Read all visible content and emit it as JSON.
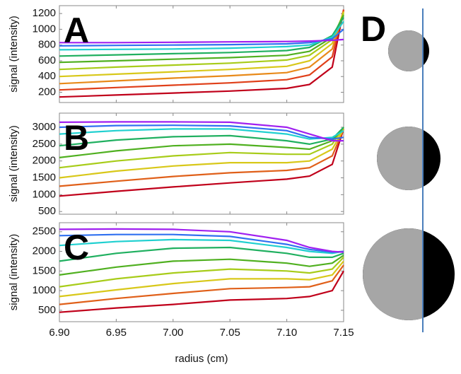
{
  "chart_data": [
    {
      "type": "line",
      "label": "A",
      "ylabel": "signal (intensity)",
      "x": [
        6.9,
        6.95,
        7.0,
        7.05,
        7.1,
        7.12,
        7.14,
        7.15
      ],
      "xlim": [
        6.9,
        7.15
      ],
      "xticks": [
        6.9,
        6.95,
        7.0,
        7.05,
        7.1,
        7.15
      ],
      "ylim": [
        70,
        1300
      ],
      "yticks": [
        200,
        400,
        600,
        800,
        1000,
        1200
      ],
      "series": [
        {
          "color": "#c0001a",
          "values": [
            140,
            165,
            190,
            215,
            250,
            300,
            520,
            1250
          ]
        },
        {
          "color": "#e0401a",
          "values": [
            230,
            260,
            290,
            320,
            360,
            420,
            650,
            1250
          ]
        },
        {
          "color": "#e88a1a",
          "values": [
            310,
            345,
            380,
            410,
            450,
            520,
            750,
            1230
          ]
        },
        {
          "color": "#d8c81a",
          "values": [
            400,
            430,
            460,
            490,
            530,
            600,
            820,
            1220
          ]
        },
        {
          "color": "#a8cc1a",
          "values": [
            490,
            520,
            545,
            570,
            610,
            670,
            870,
            1200
          ]
        },
        {
          "color": "#50b020",
          "values": [
            580,
            600,
            620,
            640,
            670,
            720,
            900,
            1180
          ]
        },
        {
          "color": "#20b060",
          "values": [
            660,
            675,
            690,
            705,
            730,
            770,
            920,
            1150
          ]
        },
        {
          "color": "#20d0d0",
          "values": [
            740,
            745,
            750,
            760,
            780,
            800,
            900,
            1100
          ]
        },
        {
          "color": "#3070f0",
          "values": [
            790,
            795,
            800,
            805,
            815,
            830,
            880,
            1000
          ]
        },
        {
          "color": "#a020f0",
          "values": [
            830,
            830,
            835,
            840,
            845,
            850,
            860,
            870
          ]
        }
      ]
    },
    {
      "type": "line",
      "label": "B",
      "ylabel": "signal (intensity)",
      "x": [
        6.9,
        6.95,
        7.0,
        7.05,
        7.1,
        7.12,
        7.14,
        7.15
      ],
      "xlim": [
        6.9,
        7.15
      ],
      "xticks": [
        6.9,
        6.95,
        7.0,
        7.05,
        7.1,
        7.15
      ],
      "ylim": [
        420,
        3420
      ],
      "yticks": [
        500,
        1000,
        1500,
        2000,
        2500,
        3000
      ],
      "series": [
        {
          "color": "#c0001a",
          "values": [
            960,
            1100,
            1230,
            1350,
            1460,
            1550,
            1900,
            2950
          ]
        },
        {
          "color": "#e0601a",
          "values": [
            1250,
            1400,
            1540,
            1650,
            1720,
            1800,
            2150,
            2950
          ]
        },
        {
          "color": "#d8c81a",
          "values": [
            1500,
            1700,
            1850,
            1950,
            1950,
            2000,
            2350,
            2950
          ]
        },
        {
          "color": "#a8cc1a",
          "values": [
            1800,
            2000,
            2150,
            2250,
            2200,
            2200,
            2500,
            3000
          ]
        },
        {
          "color": "#50b020",
          "values": [
            2100,
            2300,
            2450,
            2500,
            2400,
            2350,
            2600,
            3000
          ]
        },
        {
          "color": "#20b060",
          "values": [
            2450,
            2620,
            2720,
            2750,
            2600,
            2500,
            2650,
            3000
          ]
        },
        {
          "color": "#20d0d0",
          "values": [
            2800,
            2900,
            2950,
            2950,
            2800,
            2650,
            2700,
            2900
          ]
        },
        {
          "color": "#3070f0",
          "values": [
            3000,
            3050,
            3060,
            3040,
            2900,
            2700,
            2650,
            2700
          ]
        },
        {
          "color": "#a020f0",
          "values": [
            3150,
            3160,
            3160,
            3150,
            3000,
            2800,
            2600,
            2600
          ]
        }
      ]
    },
    {
      "type": "line",
      "label": "C",
      "ylabel": "signal (intensity)",
      "xlabel": "radius (cm)",
      "x": [
        6.9,
        6.95,
        7.0,
        7.05,
        7.1,
        7.12,
        7.14,
        7.15
      ],
      "xlim": [
        6.9,
        7.15
      ],
      "xticks": [
        {
          "value": 6.9,
          "label": "6.90"
        },
        6.95,
        {
          "value": 7.0,
          "label": "7.00"
        },
        7.05,
        {
          "value": 7.1,
          "label": "7.10"
        },
        7.15
      ],
      "ylim": [
        210,
        2730
      ],
      "yticks": [
        500,
        1000,
        1500,
        2000,
        2500
      ],
      "series": [
        {
          "color": "#c0001a",
          "values": [
            450,
            560,
            650,
            760,
            800,
            850,
            1000,
            1500
          ]
        },
        {
          "color": "#e0601a",
          "values": [
            650,
            800,
            930,
            1050,
            1080,
            1100,
            1250,
            1650
          ]
        },
        {
          "color": "#d8c81a",
          "values": [
            850,
            1020,
            1180,
            1300,
            1300,
            1280,
            1400,
            1750
          ]
        },
        {
          "color": "#a8cc1a",
          "values": [
            1100,
            1300,
            1450,
            1550,
            1500,
            1450,
            1550,
            1850
          ]
        },
        {
          "color": "#50b020",
          "values": [
            1400,
            1600,
            1750,
            1800,
            1700,
            1620,
            1700,
            1900
          ]
        },
        {
          "color": "#20b060",
          "values": [
            1750,
            1950,
            2080,
            2100,
            1950,
            1850,
            1850,
            1950
          ]
        },
        {
          "color": "#20d0d0",
          "values": [
            2150,
            2250,
            2300,
            2280,
            2100,
            2000,
            1950,
            2000
          ]
        },
        {
          "color": "#3070f0",
          "values": [
            2400,
            2430,
            2430,
            2380,
            2180,
            2050,
            1980,
            2000
          ]
        },
        {
          "color": "#a020f0",
          "values": [
            2560,
            2570,
            2560,
            2500,
            2280,
            2100,
            2000,
            1980
          ]
        }
      ]
    }
  ],
  "panel_d": {
    "label": "D"
  }
}
